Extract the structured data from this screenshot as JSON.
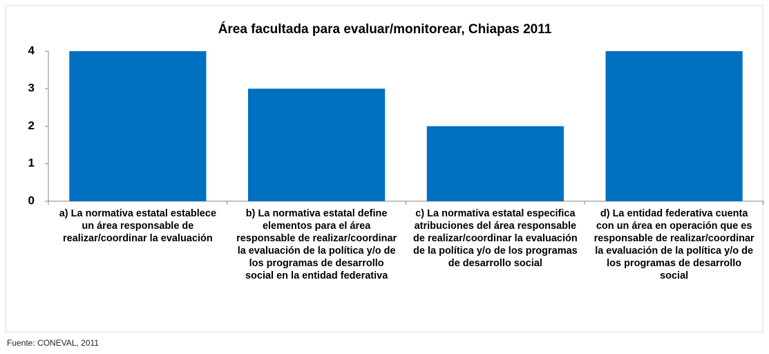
{
  "chart_data": {
    "type": "bar",
    "title": "Área facultada para evaluar/monitorear, Chiapas 2011",
    "categories": [
      "a) La normativa estatal establece un área responsable de realizar/coordinar la evaluación",
      "b) La normativa estatal define elementos para el área responsable de realizar/coordinar la evaluación de la política y/o de los programas de desarrollo social en la entidad federativa",
      "c) La normativa estatal especifica atribuciones del área responsable de realizar/coordinar la evaluación de la política y/o de los programas de desarrollo social",
      "d) La entidad federativa cuenta con un área en operación que es responsable de realizar/coordinar la evaluación de la política y/o de los programas de desarrollo social"
    ],
    "values": [
      4,
      3,
      2,
      4
    ],
    "color": "#0070c0",
    "ylim": [
      0,
      4
    ],
    "yticks": [
      0,
      1,
      2,
      3,
      4
    ],
    "grid": false,
    "source": "Fuente: CONEVAL, 2011"
  }
}
